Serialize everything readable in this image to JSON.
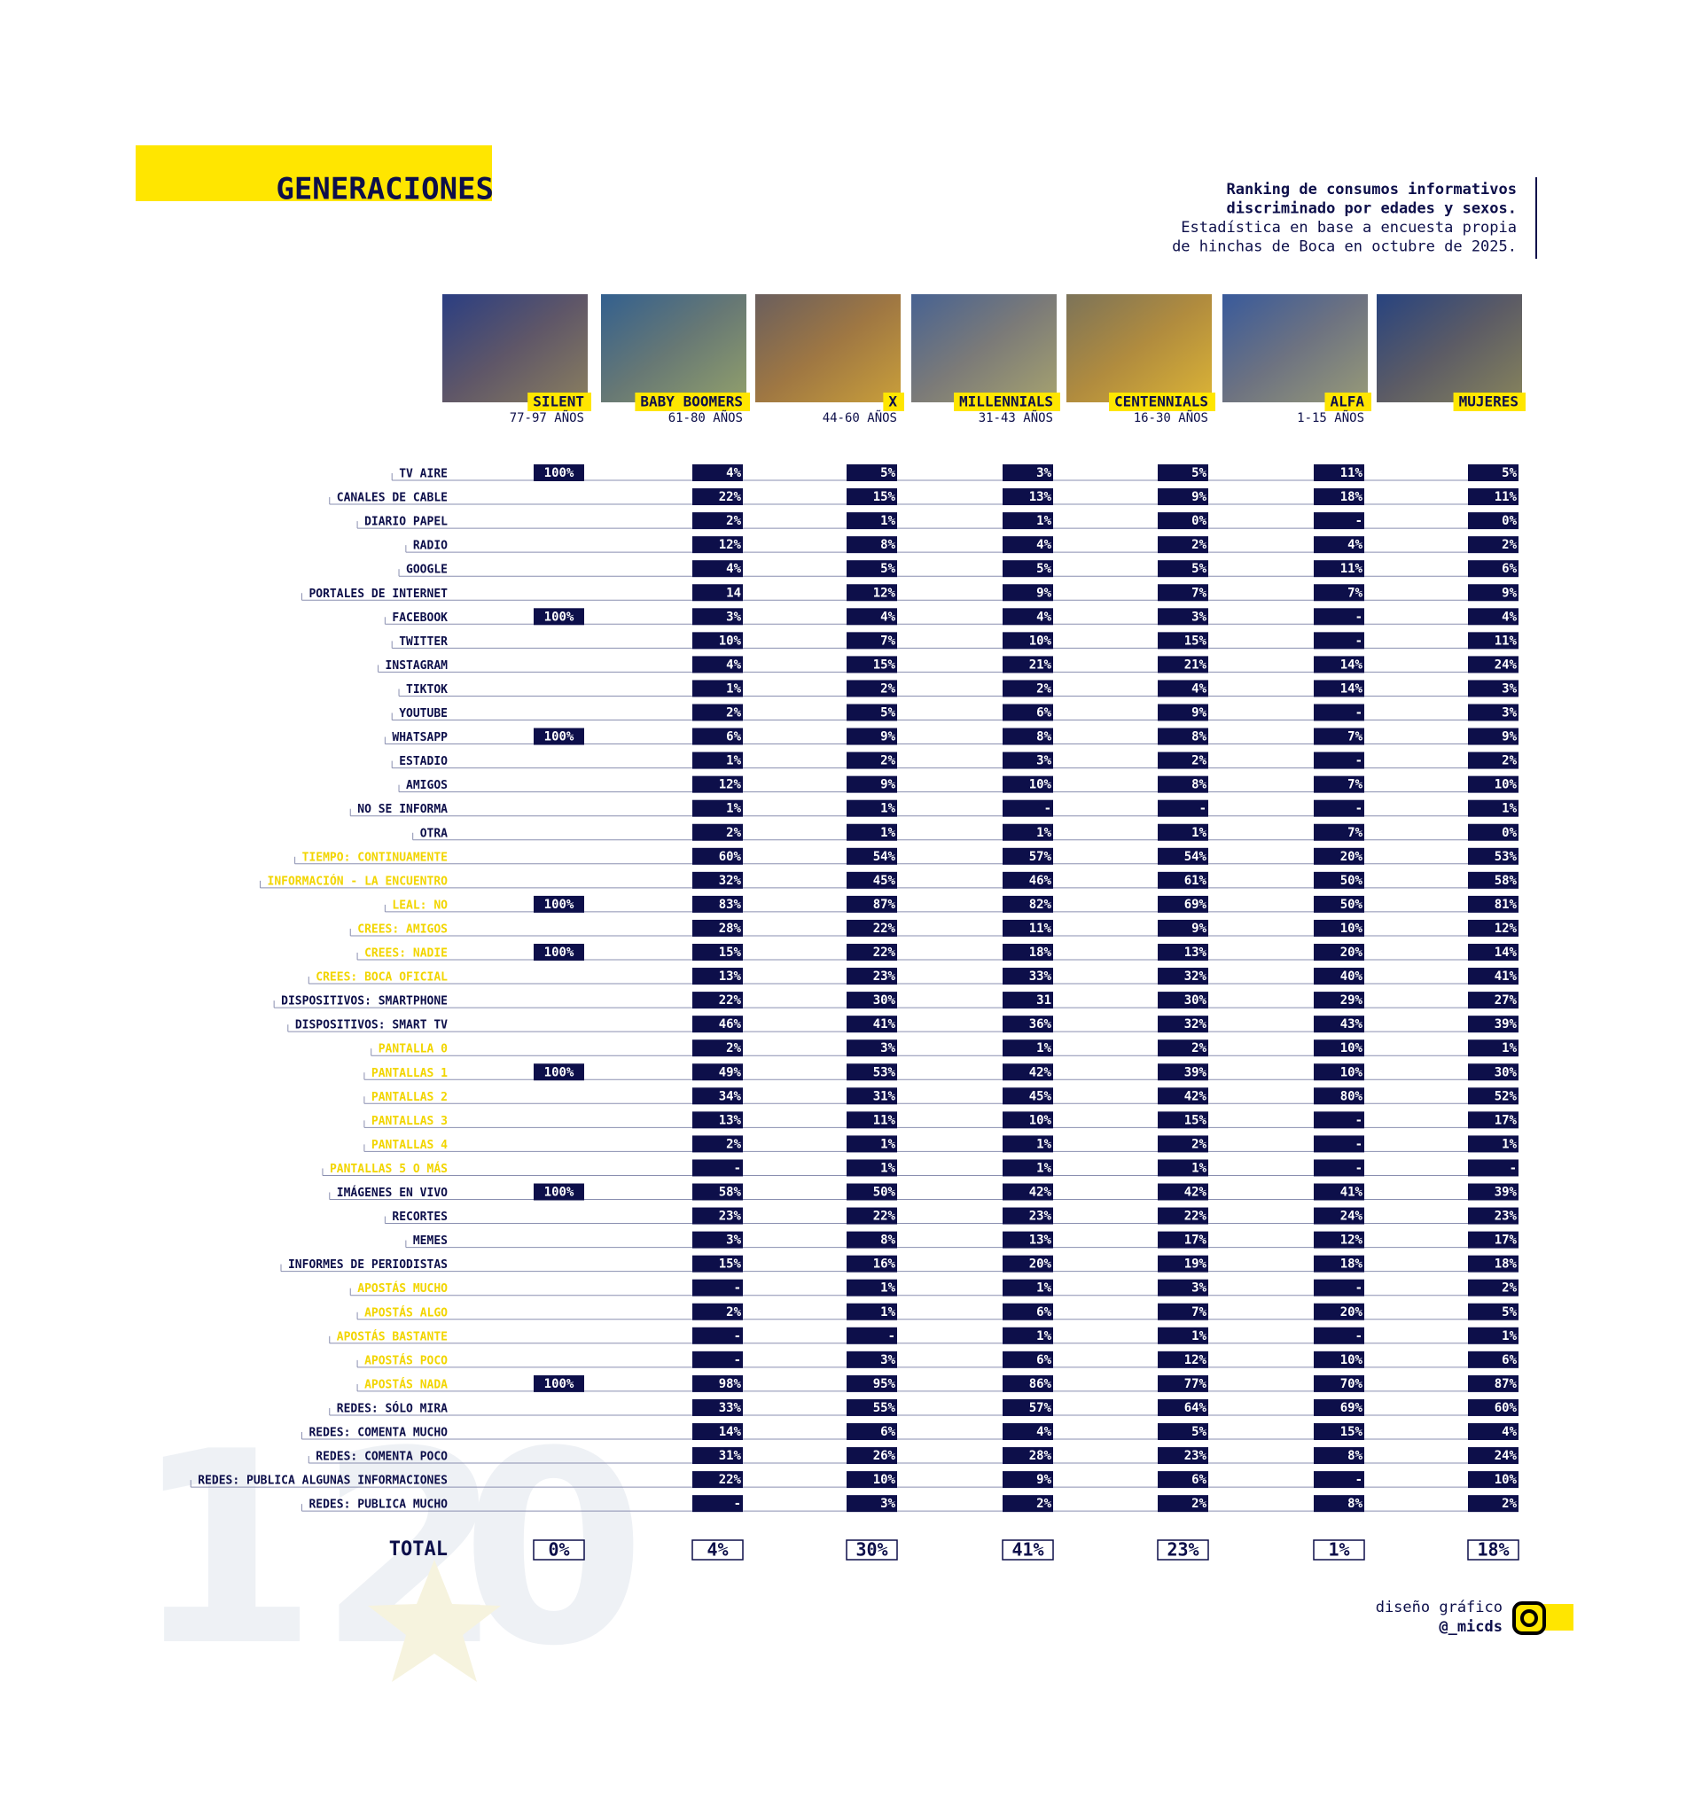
{
  "header": {
    "title": "GENERACIONES",
    "subtitle": [
      "Ranking de consumos informativos",
      "discriminado por edades y sexos.",
      "Estadística en base a encuesta propia",
      "de hinchas de Boca en octubre de 2025."
    ]
  },
  "columns": [
    {
      "name": "SILENT",
      "ages": "77-97 AÑOS"
    },
    {
      "name": "BABY BOOMERS",
      "ages": "61-80 AÑOS"
    },
    {
      "name": "X",
      "ages": "44-60 AÑOS"
    },
    {
      "name": "MILLENNIALS",
      "ages": "31-43 AÑOS"
    },
    {
      "name": "CENTENNIALS",
      "ages": "16-30 AÑOS"
    },
    {
      "name": "ALFA",
      "ages": "1-15 AÑOS"
    },
    {
      "name": "MUJERES"
    }
  ],
  "table": {
    "rows": [
      {
        "label": "TV AIRE",
        "color": "#0d0f4a",
        "cells": [
          "100%",
          "4%",
          "5%",
          "3%",
          "5%",
          "11%",
          "5%"
        ]
      },
      {
        "label": "CANALES DE CABLE",
        "color": "#0d0f4a",
        "cells": [
          null,
          "22%",
          "15%",
          "13%",
          "9%",
          "18%",
          "11%"
        ]
      },
      {
        "label": "DIARIO PAPEL",
        "color": "#0d0f4a",
        "cells": [
          null,
          "2%",
          "1%",
          "1%",
          "0%",
          "-",
          "0%"
        ]
      },
      {
        "label": "RADIO",
        "color": "#0d0f4a",
        "cells": [
          null,
          "12%",
          "8%",
          "4%",
          "2%",
          "4%",
          "2%"
        ]
      },
      {
        "label": "GOOGLE",
        "color": "#0d0f4a",
        "cells": [
          null,
          "4%",
          "5%",
          "5%",
          "5%",
          "11%",
          "6%"
        ]
      },
      {
        "label": "PORTALES DE INTERNET",
        "color": "#0d0f4a",
        "cells": [
          null,
          "14",
          "12%",
          "9%",
          "7%",
          "7%",
          "9%"
        ]
      },
      {
        "label": "FACEBOOK",
        "color": "#0d0f4a",
        "cells": [
          "100%",
          "3%",
          "4%",
          "4%",
          "3%",
          "-",
          "4%"
        ]
      },
      {
        "label": "TWITTER",
        "color": "#0d0f4a",
        "cells": [
          null,
          "10%",
          "7%",
          "10%",
          "15%",
          "-",
          "11%"
        ]
      },
      {
        "label": "INSTAGRAM",
        "color": "#0d0f4a",
        "cells": [
          null,
          "4%",
          "15%",
          "21%",
          "21%",
          "14%",
          "24%"
        ]
      },
      {
        "label": "TIKTOK",
        "color": "#0d0f4a",
        "cells": [
          null,
          "1%",
          "2%",
          "2%",
          "4%",
          "14%",
          "3%"
        ]
      },
      {
        "label": "YOUTUBE",
        "color": "#0d0f4a",
        "cells": [
          null,
          "2%",
          "5%",
          "6%",
          "9%",
          "-",
          "3%"
        ]
      },
      {
        "label": "WHATSAPP",
        "color": "#0d0f4a",
        "cells": [
          "100%",
          "6%",
          "9%",
          "8%",
          "8%",
          "7%",
          "9%"
        ]
      },
      {
        "label": "ESTADIO",
        "color": "#0d0f4a",
        "cells": [
          null,
          "1%",
          "2%",
          "3%",
          "2%",
          "-",
          "2%"
        ]
      },
      {
        "label": "AMIGOS",
        "color": "#0d0f4a",
        "cells": [
          null,
          "12%",
          "9%",
          "10%",
          "8%",
          "7%",
          "10%"
        ]
      },
      {
        "label": "NO SE INFORMA",
        "color": "#0d0f4a",
        "cells": [
          null,
          "1%",
          "1%",
          "-",
          "-",
          "-",
          "1%"
        ]
      },
      {
        "label": "OTRA",
        "color": "#0d0f4a",
        "cells": [
          null,
          "2%",
          "1%",
          "1%",
          "1%",
          "7%",
          "0%"
        ]
      },
      {
        "label": "TIEMPO: CONTINUAMENTE",
        "color": "#f2d500",
        "cells": [
          null,
          "60%",
          "54%",
          "57%",
          "54%",
          "20%",
          "53%"
        ]
      },
      {
        "label": "INFORMACIÓN - LA ENCUENTRO",
        "color": "#f2d500",
        "cells": [
          null,
          "32%",
          "45%",
          "46%",
          "61%",
          "50%",
          "58%"
        ]
      },
      {
        "label": "LEAL: NO",
        "color": "#f2d500",
        "cells": [
          "100%",
          "83%",
          "87%",
          "82%",
          "69%",
          "50%",
          "81%"
        ]
      },
      {
        "label": "CREES: AMIGOS",
        "color": "#f2d500",
        "cells": [
          null,
          "28%",
          "22%",
          "11%",
          "9%",
          "10%",
          "12%"
        ]
      },
      {
        "label": "CREES: NADIE",
        "color": "#f2d500",
        "cells": [
          "100%",
          "15%",
          "22%",
          "18%",
          "13%",
          "20%",
          "14%"
        ]
      },
      {
        "label": "CREES: BOCA OFICIAL",
        "color": "#f2d500",
        "cells": [
          null,
          "13%",
          "23%",
          "33%",
          "32%",
          "40%",
          "41%"
        ]
      },
      {
        "label": "DISPOSITIVOS: SMARTPHONE",
        "color": "#0d0f4a",
        "cells": [
          null,
          "22%",
          "30%",
          "31",
          "30%",
          "29%",
          "27%"
        ]
      },
      {
        "label": "DISPOSITIVOS: SMART TV",
        "color": "#0d0f4a",
        "cells": [
          null,
          "46%",
          "41%",
          "36%",
          "32%",
          "43%",
          "39%"
        ]
      },
      {
        "label": "PANTALLA 0",
        "color": "#f2d500",
        "cells": [
          null,
          "2%",
          "3%",
          "1%",
          "2%",
          "10%",
          "1%"
        ]
      },
      {
        "label": "PANTALLAS 1",
        "color": "#f2d500",
        "cells": [
          "100%",
          "49%",
          "53%",
          "42%",
          "39%",
          "10%",
          "30%"
        ]
      },
      {
        "label": "PANTALLAS 2",
        "color": "#f2d500",
        "cells": [
          null,
          "34%",
          "31%",
          "45%",
          "42%",
          "80%",
          "52%"
        ]
      },
      {
        "label": "PANTALLAS 3",
        "color": "#f2d500",
        "cells": [
          null,
          "13%",
          "11%",
          "10%",
          "15%",
          "-",
          "17%"
        ]
      },
      {
        "label": "PANTALLAS 4",
        "color": "#f2d500",
        "cells": [
          null,
          "2%",
          "1%",
          "1%",
          "2%",
          "-",
          "1%"
        ]
      },
      {
        "label": "PANTALLAS 5 O MÁS",
        "color": "#f2d500",
        "cells": [
          null,
          "-",
          "1%",
          "1%",
          "1%",
          "-",
          "-"
        ]
      },
      {
        "label": "IMÁGENES EN VIVO",
        "color": "#0d0f4a",
        "cells": [
          "100%",
          "58%",
          "50%",
          "42%",
          "42%",
          "41%",
          "39%"
        ]
      },
      {
        "label": "RECORTES",
        "color": "#0d0f4a",
        "cells": [
          null,
          "23%",
          "22%",
          "23%",
          "22%",
          "24%",
          "23%"
        ]
      },
      {
        "label": "MEMES",
        "color": "#0d0f4a",
        "cells": [
          null,
          "3%",
          "8%",
          "13%",
          "17%",
          "12%",
          "17%"
        ]
      },
      {
        "label": "INFORMES DE PERIODISTAS",
        "color": "#0d0f4a",
        "cells": [
          null,
          "15%",
          "16%",
          "20%",
          "19%",
          "18%",
          "18%"
        ]
      },
      {
        "label": "APOSTÁS MUCHO",
        "color": "#f2d500",
        "cells": [
          null,
          "-",
          "1%",
          "1%",
          "3%",
          "-",
          "2%"
        ]
      },
      {
        "label": "APOSTÁS ALGO",
        "color": "#f2d500",
        "cells": [
          null,
          "2%",
          "1%",
          "6%",
          "7%",
          "20%",
          "5%"
        ]
      },
      {
        "label": "APOSTÁS BASTANTE",
        "color": "#f2d500",
        "cells": [
          null,
          "-",
          "-",
          "1%",
          "1%",
          "-",
          "1%"
        ]
      },
      {
        "label": "APOSTÁS POCO",
        "color": "#f2d500",
        "cells": [
          null,
          "-",
          "3%",
          "6%",
          "12%",
          "10%",
          "6%"
        ]
      },
      {
        "label": "APOSTÁS NADA",
        "color": "#f2d500",
        "cells": [
          "100%",
          "98%",
          "95%",
          "86%",
          "77%",
          "70%",
          "87%"
        ]
      },
      {
        "label": "REDES: SÓLO MIRA",
        "color": "#0d0f4a",
        "cells": [
          null,
          "33%",
          "55%",
          "57%",
          "64%",
          "69%",
          "60%"
        ]
      },
      {
        "label": "REDES: COMENTA MUCHO",
        "color": "#0d0f4a",
        "cells": [
          null,
          "14%",
          "6%",
          "4%",
          "5%",
          "15%",
          "4%"
        ]
      },
      {
        "label": "REDES: COMENTA POCO",
        "color": "#0d0f4a",
        "cells": [
          null,
          "31%",
          "26%",
          "28%",
          "23%",
          "8%",
          "24%"
        ]
      },
      {
        "label": "REDES: PUBLICA ALGUNAS INFORMACIONES",
        "color": "#0d0f4a",
        "cells": [
          null,
          "22%",
          "10%",
          "9%",
          "6%",
          "-",
          "10%"
        ]
      },
      {
        "label": "REDES: PUBLICA MUCHO",
        "color": "#0d0f4a",
        "cells": [
          null,
          "-",
          "3%",
          "2%",
          "2%",
          "8%",
          "2%"
        ]
      }
    ],
    "total": {
      "label": "TOTAL",
      "cells": [
        "0%",
        "4%",
        "30%",
        "41%",
        "23%",
        "1%",
        "18%"
      ]
    }
  },
  "watermark": [
    "12",
    "0"
  ],
  "credit": [
    "diseño gráfico",
    "@_micds"
  ]
}
